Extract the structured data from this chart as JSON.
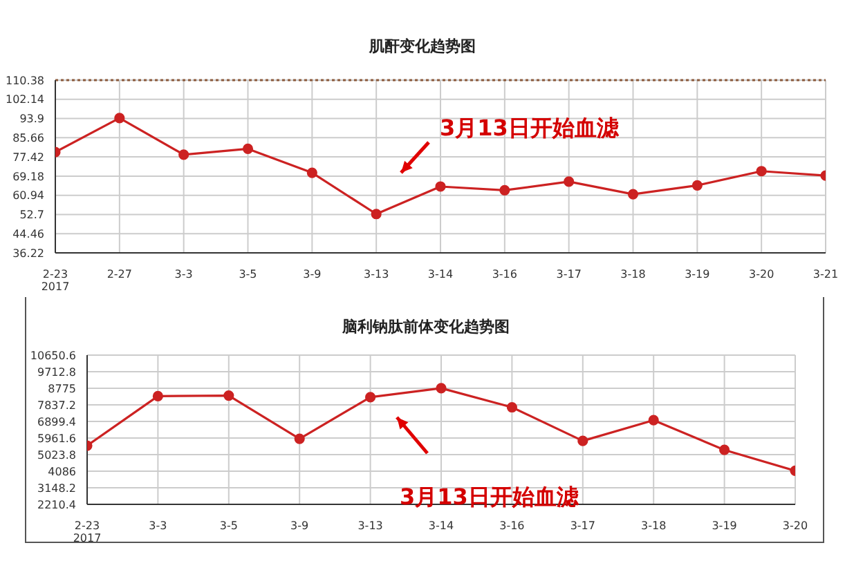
{
  "chart_data": [
    {
      "type": "line",
      "title": "肌酐变化趋势图",
      "categories": [
        "2-23\n2017",
        "2-27",
        "3-3",
        "3-5",
        "3-9",
        "3-13",
        "3-14",
        "3-16",
        "3-17",
        "3-18",
        "3-19",
        "3-20",
        "3-21"
      ],
      "series": [
        {
          "color": "#cc2222",
          "values": [
            79.5,
            94.1,
            78.4,
            80.9,
            70.6,
            52.9,
            64.7,
            63.1,
            66.8,
            61.4,
            65.2,
            71.3,
            69.4
          ]
        }
      ],
      "ylim": [
        36.22,
        110.38
      ],
      "yticks": [
        36.22,
        44.46,
        52.7,
        60.94,
        69.18,
        77.42,
        85.66,
        93.9,
        102.14,
        110.38
      ],
      "ref_lines": [
        {
          "axis": "y",
          "value": 110.38,
          "color": "#8b5a3c",
          "line_style": "dotted"
        }
      ],
      "annotations": [
        "3月13日开始血滤"
      ],
      "grid": true,
      "legend": false,
      "marker": "circle",
      "line_style": "solid"
    },
    {
      "type": "line",
      "title": "脑利钠肽前体变化趋势图",
      "categories": [
        "2-23\n2017",
        "3-3",
        "3-5",
        "3-9",
        "3-13",
        "3-14",
        "3-16",
        "3-17",
        "3-18",
        "3-19",
        "3-20"
      ],
      "series": [
        {
          "color": "#cc2222",
          "values": [
            5530,
            8330,
            8360,
            5920,
            8270,
            8780,
            7700,
            5800,
            6970,
            5290,
            4110
          ]
        }
      ],
      "ylim": [
        2210.4,
        10650.6
      ],
      "yticks": [
        2210.4,
        3148.2,
        4086,
        5023.8,
        5961.6,
        6899.4,
        7837.2,
        8775,
        9712.8,
        10650.6
      ],
      "annotations": [
        "3月13日开始血滤"
      ],
      "grid": true,
      "legend": false,
      "marker": "circle",
      "line_style": "solid"
    }
  ]
}
